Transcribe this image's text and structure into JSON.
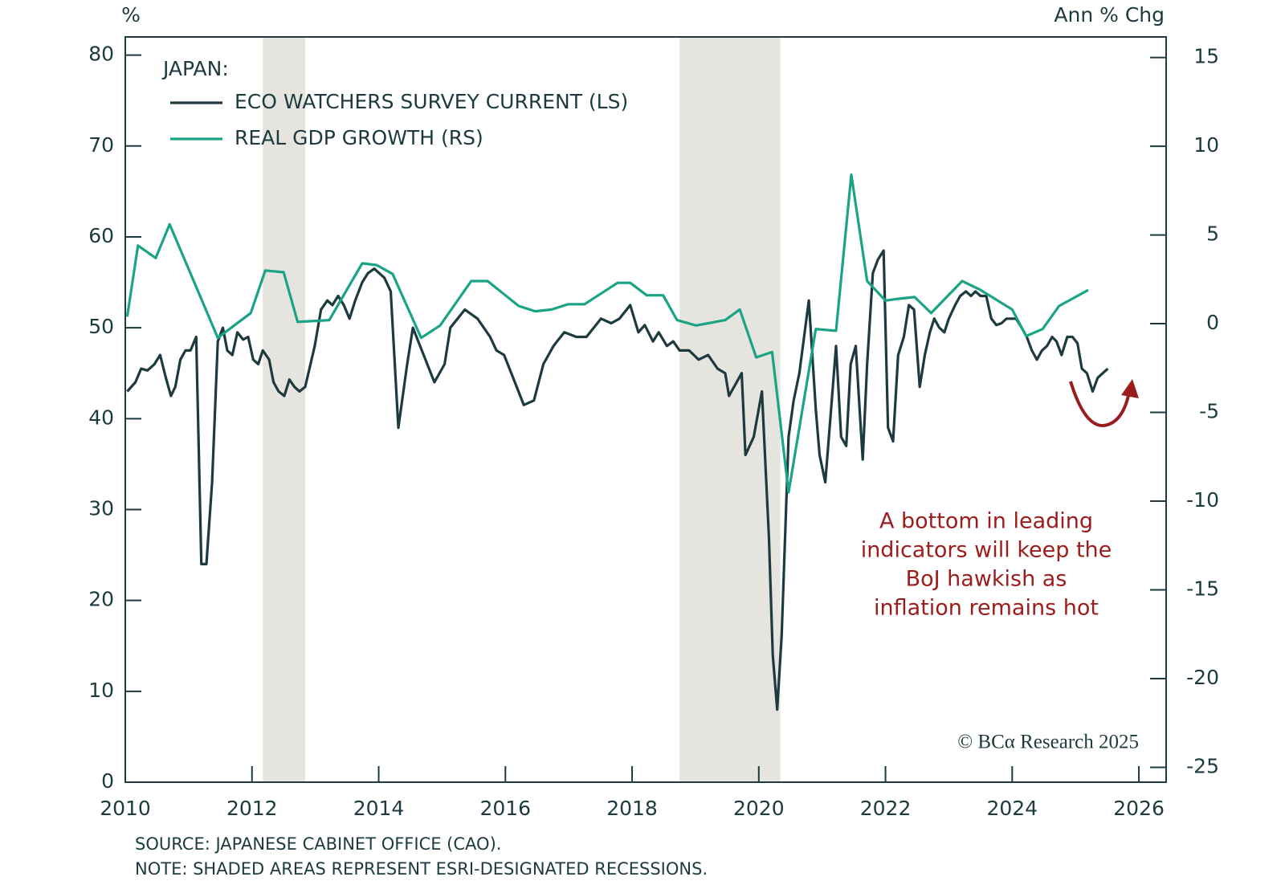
{
  "chart_data": {
    "type": "line",
    "ylabel": "%",
    "y2label": "Ann % Chg",
    "legend_title": "JAPAN:",
    "annotation": [
      "A bottom in leading",
      "indicators will keep the",
      "BoJ hawkish as",
      "inflation remains hot"
    ],
    "copyright": "© BCα Research 2025",
    "source": "SOURCE: JAPANESE CABINET OFFICE (CAO).",
    "note": "NOTE: SHADED AREAS REPRESENT ESRI-DESIGNATED RECESSIONS.",
    "xlim": [
      2010,
      2026.43
    ],
    "xticks": [
      2010,
      2012,
      2014,
      2016,
      2018,
      2020,
      2022,
      2024,
      2026
    ],
    "ylim": [
      0,
      82
    ],
    "yticks": [
      0,
      10,
      20,
      30,
      40,
      50,
      60,
      70,
      80
    ],
    "y2lim": [
      -25.84,
      16.16
    ],
    "y2ticks": [
      -25,
      -20,
      -15,
      -10,
      -5,
      0,
      5,
      10,
      15
    ],
    "recessions": [
      [
        2012.17,
        2012.84
      ],
      [
        2018.75,
        2020.34
      ]
    ],
    "recession_color": "#e6e4df",
    "series": [
      {
        "name": "ECO WATCHERS SURVEY CURRENT (LS)",
        "color": "#1d3b3f",
        "axis": "y",
        "x": [
          2010.03,
          2010.16,
          2010.25,
          2010.35,
          2010.46,
          2010.55,
          2010.64,
          2010.72,
          2010.79,
          2010.87,
          2010.95,
          2011.03,
          2011.12,
          2011.2,
          2011.28,
          2011.37,
          2011.46,
          2011.54,
          2011.61,
          2011.69,
          2011.77,
          2011.86,
          2011.94,
          2012.02,
          2012.1,
          2012.17,
          2012.27,
          2012.34,
          2012.42,
          2012.51,
          2012.59,
          2012.67,
          2012.75,
          2012.84,
          2012.99,
          2013.09,
          2013.19,
          2013.27,
          2013.36,
          2013.45,
          2013.54,
          2013.63,
          2013.74,
          2013.83,
          2013.93,
          2014.09,
          2014.19,
          2014.31,
          2014.45,
          2014.54,
          2014.71,
          2014.88,
          2015.04,
          2015.13,
          2015.36,
          2015.56,
          2015.76,
          2015.86,
          2015.98,
          2016.15,
          2016.29,
          2016.45,
          2016.6,
          2016.76,
          2016.93,
          2017.12,
          2017.28,
          2017.51,
          2017.67,
          2017.8,
          2017.97,
          2018.1,
          2018.2,
          2018.33,
          2018.42,
          2018.55,
          2018.65,
          2018.75,
          2018.9,
          2019.05,
          2019.2,
          2019.35,
          2019.47,
          2019.53,
          2019.73,
          2019.79,
          2019.92,
          2020.05,
          2020.16,
          2020.22,
          2020.29,
          2020.36,
          2020.47,
          2020.55,
          2020.64,
          2020.79,
          2020.9,
          2020.96,
          2021.05,
          2021.13,
          2021.22,
          2021.3,
          2021.38,
          2021.45,
          2021.53,
          2021.64,
          2021.71,
          2021.8,
          2021.88,
          2021.97,
          2022.04,
          2022.12,
          2022.2,
          2022.29,
          2022.37,
          2022.45,
          2022.54,
          2022.62,
          2022.7,
          2022.77,
          2022.85,
          2022.93,
          2023.0,
          2023.1,
          2023.18,
          2023.27,
          2023.35,
          2023.42,
          2023.5,
          2023.59,
          2023.67,
          2023.75,
          2023.83,
          2023.91,
          2023.99,
          2024.06,
          2024.15,
          2024.23,
          2024.31,
          2024.39,
          2024.47,
          2024.55,
          2024.63,
          2024.7,
          2024.78,
          2024.87,
          2024.95,
          2025.03,
          2025.1,
          2025.18,
          2025.27,
          2025.35,
          2025.43,
          2025.51
        ],
        "values": [
          43,
          44,
          45.5,
          45.3,
          46,
          47,
          44.5,
          42.5,
          43.5,
          46.5,
          47.5,
          47.5,
          49,
          24,
          24,
          33,
          48.5,
          50,
          47.5,
          47,
          49.5,
          48.7,
          49,
          46.5,
          46,
          47.5,
          46.5,
          44,
          43,
          42.5,
          44.3,
          43.5,
          43,
          43.5,
          48,
          52,
          53,
          52.5,
          53.5,
          52.5,
          51,
          53,
          55,
          56,
          56.5,
          55.5,
          54,
          39,
          46,
          50,
          47,
          44,
          46,
          50,
          52,
          51,
          49,
          47.5,
          47,
          44,
          41.5,
          42,
          46,
          48,
          49.5,
          49,
          49,
          51,
          50.5,
          51,
          52.5,
          49.5,
          50.3,
          48.5,
          49.5,
          48,
          48.5,
          47.5,
          47.5,
          46.5,
          47,
          45.5,
          45,
          42.5,
          45,
          36,
          38,
          43,
          27,
          14,
          8,
          16,
          38,
          42,
          45,
          53,
          41,
          36,
          33,
          40,
          48,
          38,
          37,
          46,
          48,
          35.5,
          46,
          56,
          57.5,
          58.5,
          39,
          37.5,
          47,
          49,
          52.5,
          52,
          43.5,
          47,
          49.5,
          51,
          50,
          49.5,
          51,
          52.5,
          53.5,
          54,
          53.5,
          54,
          53.5,
          53.5,
          51,
          50.3,
          50.5,
          51,
          51,
          51,
          50,
          49,
          47.5,
          46.5,
          47.5,
          48,
          49,
          48.5,
          47,
          49,
          49,
          48.3,
          45.5,
          45,
          43,
          44.5,
          45,
          45.5
        ]
      },
      {
        "name": "REAL GDP GROWTH (RS)",
        "color": "#1aa385",
        "axis": "y2",
        "x": [
          2010.03,
          2010.2,
          2010.48,
          2010.7,
          2011.46,
          2011.98,
          2012.21,
          2012.5,
          2012.72,
          2013.22,
          2013.74,
          2013.97,
          2014.22,
          2014.67,
          2014.97,
          2015.46,
          2015.72,
          2016.21,
          2016.47,
          2016.73,
          2016.99,
          2017.25,
          2017.77,
          2017.97,
          2018.23,
          2018.49,
          2018.71,
          2019.01,
          2019.47,
          2019.7,
          2019.96,
          2020.21,
          2020.47,
          2020.9,
          2021.22,
          2021.46,
          2021.71,
          2022.0,
          2022.2,
          2022.46,
          2022.72,
          2023.21,
          2023.5,
          2024.0,
          2024.22,
          2024.48,
          2024.74,
          2025.2
        ],
        "values": [
          0.4,
          4.4,
          3.7,
          5.6,
          -0.8,
          0.6,
          3.0,
          2.9,
          0.1,
          0.2,
          3.4,
          3.3,
          2.8,
          -0.8,
          -0.1,
          2.4,
          2.4,
          1.0,
          0.7,
          0.8,
          1.1,
          1.1,
          2.3,
          2.3,
          1.6,
          1.6,
          0.2,
          -0.1,
          0.2,
          0.8,
          -1.9,
          -1.6,
          -9.5,
          -0.3,
          -0.4,
          8.4,
          2.4,
          1.3,
          1.4,
          1.5,
          0.6,
          2.4,
          1.9,
          0.8,
          -0.7,
          -0.3,
          1.0,
          1.9
        ]
      }
    ]
  }
}
